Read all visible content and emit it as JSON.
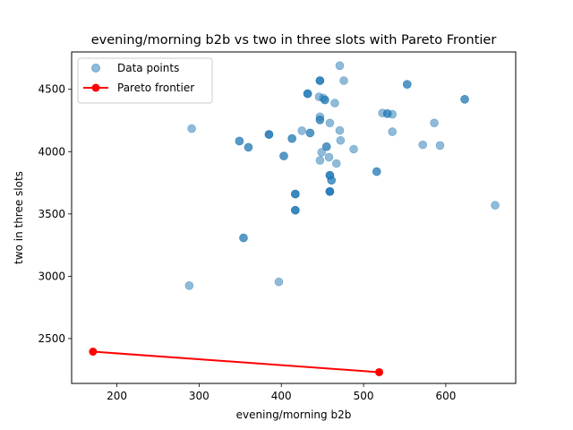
{
  "chart_data": {
    "type": "scatter",
    "title": "evening/morning b2b vs two in three slots with Pareto Frontier",
    "xlabel": "evening/morning b2b",
    "ylabel": "two in three slots",
    "xlim": [
      145,
      685
    ],
    "ylim": [
      2140,
      4800
    ],
    "xticks": [
      200,
      300,
      400,
      500,
      600
    ],
    "yticks": [
      2500,
      3000,
      3500,
      4000,
      4500
    ],
    "grid": false,
    "legend_position": "upper left",
    "series": [
      {
        "name": "Data points",
        "kind": "scatter",
        "color": "#1f77b4",
        "alpha": 0.5,
        "points": [
          [
            291,
            4185
          ],
          [
            288,
            2925
          ],
          [
            349,
            4085
          ],
          [
            349,
            4085
          ],
          [
            360,
            4035
          ],
          [
            360,
            4035
          ],
          [
            354,
            3308
          ],
          [
            354,
            3308
          ],
          [
            385,
            4138
          ],
          [
            385,
            4138
          ],
          [
            385,
            4138
          ],
          [
            397,
            2955
          ],
          [
            403,
            3965
          ],
          [
            403,
            3965
          ],
          [
            413,
            4105
          ],
          [
            413,
            4105
          ],
          [
            417,
            3660
          ],
          [
            417,
            3660
          ],
          [
            417,
            3660
          ],
          [
            417,
            3530
          ],
          [
            417,
            3530
          ],
          [
            417,
            3530
          ],
          [
            425,
            4168
          ],
          [
            432,
            4465
          ],
          [
            432,
            4465
          ],
          [
            432,
            4465
          ],
          [
            435,
            4150
          ],
          [
            435,
            4150
          ],
          [
            446,
            4440
          ],
          [
            447,
            4570
          ],
          [
            447,
            4570
          ],
          [
            447,
            4570
          ],
          [
            447,
            4255
          ],
          [
            447,
            4255
          ],
          [
            447,
            4280
          ],
          [
            447,
            3930
          ],
          [
            449,
            3995
          ],
          [
            451,
            4430
          ],
          [
            453,
            4415
          ],
          [
            453,
            4415
          ],
          [
            455,
            4040
          ],
          [
            455,
            4040
          ],
          [
            458,
            3955
          ],
          [
            459,
            4230
          ],
          [
            459,
            3810
          ],
          [
            459,
            3810
          ],
          [
            459,
            3810
          ],
          [
            459,
            3680
          ],
          [
            459,
            3680
          ],
          [
            459,
            3680
          ],
          [
            459,
            3680
          ],
          [
            461,
            3770
          ],
          [
            461,
            3770
          ],
          [
            465,
            4390
          ],
          [
            467,
            3905
          ],
          [
            471,
            4690
          ],
          [
            471,
            4170
          ],
          [
            472,
            4090
          ],
          [
            476,
            4570
          ],
          [
            488,
            4020
          ],
          [
            516,
            3840
          ],
          [
            516,
            3840
          ],
          [
            523,
            4310
          ],
          [
            529,
            4305
          ],
          [
            529,
            4305
          ],
          [
            535,
            4300
          ],
          [
            535,
            4160
          ],
          [
            553,
            4540
          ],
          [
            553,
            4540
          ],
          [
            572,
            4055
          ],
          [
            586,
            4230
          ],
          [
            593,
            4050
          ],
          [
            623,
            4420
          ],
          [
            623,
            4420
          ],
          [
            660,
            3570
          ]
        ]
      },
      {
        "name": "Pareto frontier",
        "kind": "line",
        "color": "#ff0000",
        "points": [
          [
            171,
            2395
          ],
          [
            519,
            2230
          ]
        ]
      }
    ]
  }
}
